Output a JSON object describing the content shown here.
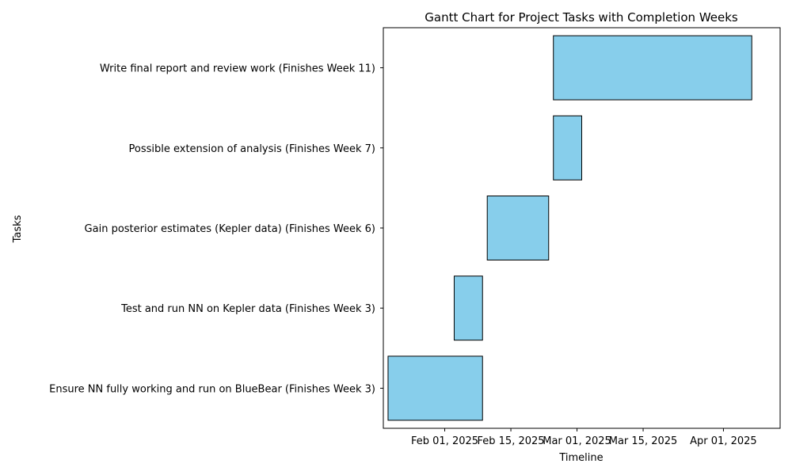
{
  "chart_data": {
    "type": "bar",
    "title": "Gantt Chart for Project Tasks with Completion Weeks",
    "xlabel": "Timeline",
    "ylabel": "Tasks",
    "bar_color": "#87ceeb",
    "edge_color": "#000000",
    "xlim": [
      "2025-01-19",
      "2025-04-13"
    ],
    "x_ticks": [
      {
        "date": "2025-02-01",
        "label": "Feb 01, 2025"
      },
      {
        "date": "2025-02-15",
        "label": "Feb 15, 2025"
      },
      {
        "date": "2025-03-01",
        "label": "Mar 01, 2025"
      },
      {
        "date": "2025-03-15",
        "label": "Mar 15, 2025"
      },
      {
        "date": "2025-04-01",
        "label": "Apr 01, 2025"
      }
    ],
    "tasks": [
      {
        "label": "Ensure NN fully working and run on BlueBear (Finishes Week 3)",
        "start": "2025-01-20",
        "end": "2025-02-09"
      },
      {
        "label": "Test and run NN on Kepler data (Finishes Week 3)",
        "start": "2025-02-03",
        "end": "2025-02-09"
      },
      {
        "label": "Gain posterior estimates (Kepler data) (Finishes Week 6)",
        "start": "2025-02-10",
        "end": "2025-02-23"
      },
      {
        "label": "Possible extension of analysis (Finishes Week 7)",
        "start": "2025-02-24",
        "end": "2025-03-02"
      },
      {
        "label": "Write final report and review work (Finishes Week 11)",
        "start": "2025-02-24",
        "end": "2025-04-07"
      }
    ]
  }
}
